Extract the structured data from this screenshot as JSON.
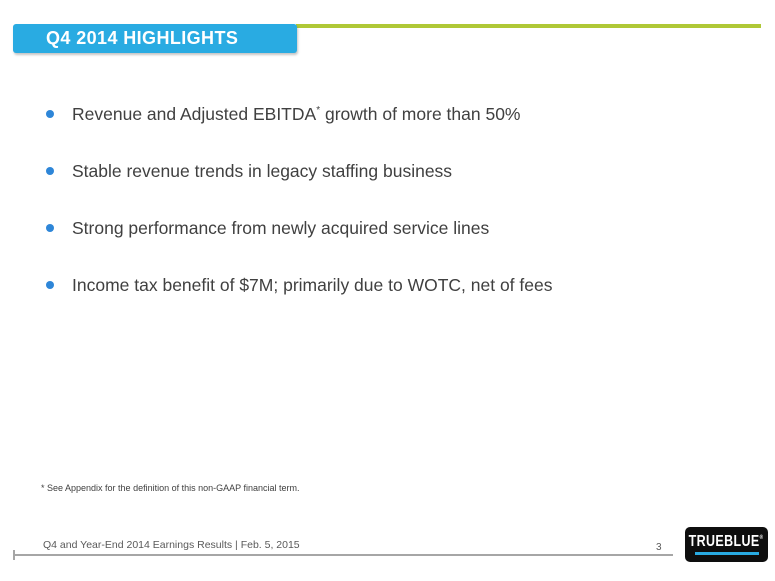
{
  "slide": {
    "title": "Q4 2014 HIGHLIGHTS",
    "bullets": [
      {
        "pre": "Revenue and Adjusted EBITDA",
        "sup": "*",
        "post": " growth of more than 50%"
      },
      {
        "pre": "Stable revenue trends in legacy staffing business",
        "sup": "",
        "post": ""
      },
      {
        "pre": "Strong performance from newly acquired service lines",
        "sup": "",
        "post": ""
      },
      {
        "pre": "Income tax benefit of $7M; primarily due to WOTC, net of fees",
        "sup": "",
        "post": ""
      }
    ],
    "footnote": "* See Appendix for the definition of this non-GAAP financial term.",
    "footer": {
      "label": "Q4 and Year-End 2014 Earnings Results | Feb. 5, 2015",
      "page_number": "3"
    },
    "logo": {
      "text": "TRUEBLUE",
      "reg": "®"
    }
  },
  "colors": {
    "accent_cyan": "#29ABE2",
    "accent_green": "#AFC836",
    "bullet_blue": "#2E86D8",
    "body_text": "#404040",
    "footer_gray": "#595959",
    "rule_gray": "#A6A6A6",
    "logo_black": "#0E0E0E"
  }
}
